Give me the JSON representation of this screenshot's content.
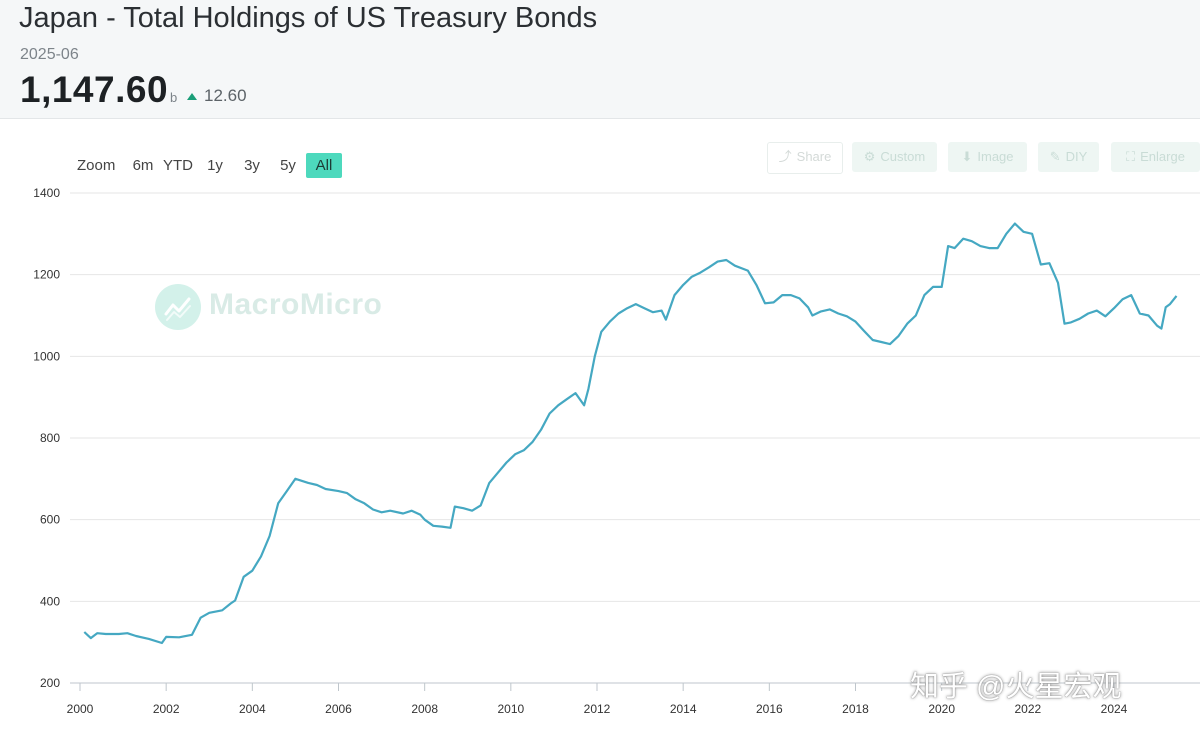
{
  "header": {
    "title": "Japan - Total Holdings of US Treasury Bonds",
    "date": "2025-06",
    "value": "1,147.60",
    "unit": "b",
    "change": "12.60"
  },
  "zoom": {
    "label": "Zoom",
    "buttons": [
      "6m",
      "YTD",
      "1y",
      "3y",
      "5y",
      "All"
    ],
    "active": "All"
  },
  "toolbar": {
    "share": "Share",
    "custom": "Custom",
    "image": "Image",
    "diy": "DIY",
    "enlarge": "Enlarge"
  },
  "watermark": "MacroMicro",
  "credit": "知乎 @火星宏观",
  "colors": {
    "line": "#45a8c2",
    "accent": "#4dd9bd",
    "up": "#1a9e78"
  },
  "chart_data": {
    "type": "line",
    "title": "Japan - Total Holdings of US Treasury Bonds",
    "unit": "b",
    "xlim": [
      2000,
      2025.5
    ],
    "ylim": [
      200,
      1400
    ],
    "yticks": [
      200,
      400,
      600,
      800,
      1000,
      1200,
      1400
    ],
    "xticks": [
      2000,
      2002,
      2004,
      2006,
      2008,
      2010,
      2012,
      2014,
      2016,
      2018,
      2020,
      2022,
      2024
    ],
    "grid": true,
    "series": [
      {
        "name": "Japan - Total Holdings of US Treasury Bonds",
        "points": [
          [
            2000.1,
            325
          ],
          [
            2000.25,
            310
          ],
          [
            2000.4,
            322
          ],
          [
            2000.6,
            320
          ],
          [
            2000.9,
            320
          ],
          [
            2001.1,
            322
          ],
          [
            2001.3,
            315
          ],
          [
            2001.6,
            308
          ],
          [
            2001.9,
            298
          ],
          [
            2002.0,
            313
          ],
          [
            2002.3,
            312
          ],
          [
            2002.6,
            318
          ],
          [
            2002.8,
            360
          ],
          [
            2003.0,
            372
          ],
          [
            2003.3,
            378
          ],
          [
            2003.5,
            395
          ],
          [
            2003.6,
            402
          ],
          [
            2003.8,
            460
          ],
          [
            2004.0,
            475
          ],
          [
            2004.2,
            510
          ],
          [
            2004.4,
            560
          ],
          [
            2004.6,
            640
          ],
          [
            2004.8,
            670
          ],
          [
            2005.0,
            700
          ],
          [
            2005.3,
            690
          ],
          [
            2005.5,
            685
          ],
          [
            2005.7,
            675
          ],
          [
            2006.0,
            670
          ],
          [
            2006.2,
            665
          ],
          [
            2006.4,
            650
          ],
          [
            2006.6,
            640
          ],
          [
            2006.8,
            625
          ],
          [
            2007.0,
            618
          ],
          [
            2007.2,
            622
          ],
          [
            2007.5,
            615
          ],
          [
            2007.7,
            622
          ],
          [
            2007.9,
            612
          ],
          [
            2008.0,
            600
          ],
          [
            2008.2,
            585
          ],
          [
            2008.4,
            583
          ],
          [
            2008.6,
            580
          ],
          [
            2008.7,
            632
          ],
          [
            2008.9,
            628
          ],
          [
            2009.1,
            622
          ],
          [
            2009.3,
            635
          ],
          [
            2009.5,
            690
          ],
          [
            2009.7,
            715
          ],
          [
            2009.9,
            740
          ],
          [
            2010.1,
            760
          ],
          [
            2010.3,
            770
          ],
          [
            2010.5,
            790
          ],
          [
            2010.7,
            820
          ],
          [
            2010.9,
            860
          ],
          [
            2011.1,
            880
          ],
          [
            2011.3,
            895
          ],
          [
            2011.5,
            910
          ],
          [
            2011.7,
            880
          ],
          [
            2011.8,
            920
          ],
          [
            2011.95,
            1000
          ],
          [
            2012.1,
            1060
          ],
          [
            2012.3,
            1085
          ],
          [
            2012.5,
            1105
          ],
          [
            2012.7,
            1118
          ],
          [
            2012.9,
            1128
          ],
          [
            2013.1,
            1118
          ],
          [
            2013.3,
            1108
          ],
          [
            2013.5,
            1112
          ],
          [
            2013.6,
            1090
          ],
          [
            2013.8,
            1150
          ],
          [
            2014.0,
            1175
          ],
          [
            2014.2,
            1195
          ],
          [
            2014.4,
            1205
          ],
          [
            2014.6,
            1218
          ],
          [
            2014.8,
            1232
          ],
          [
            2015.0,
            1236
          ],
          [
            2015.2,
            1222
          ],
          [
            2015.5,
            1210
          ],
          [
            2015.7,
            1175
          ],
          [
            2015.9,
            1130
          ],
          [
            2016.1,
            1132
          ],
          [
            2016.3,
            1150
          ],
          [
            2016.5,
            1150
          ],
          [
            2016.7,
            1142
          ],
          [
            2016.9,
            1120
          ],
          [
            2017.0,
            1100
          ],
          [
            2017.2,
            1110
          ],
          [
            2017.4,
            1115
          ],
          [
            2017.6,
            1105
          ],
          [
            2017.8,
            1098
          ],
          [
            2018.0,
            1085
          ],
          [
            2018.2,
            1062
          ],
          [
            2018.4,
            1040
          ],
          [
            2018.6,
            1035
          ],
          [
            2018.8,
            1030
          ],
          [
            2019.0,
            1050
          ],
          [
            2019.2,
            1080
          ],
          [
            2019.4,
            1100
          ],
          [
            2019.6,
            1150
          ],
          [
            2019.8,
            1170
          ],
          [
            2020.0,
            1170
          ],
          [
            2020.15,
            1270
          ],
          [
            2020.3,
            1265
          ],
          [
            2020.5,
            1288
          ],
          [
            2020.7,
            1282
          ],
          [
            2020.9,
            1270
          ],
          [
            2021.1,
            1265
          ],
          [
            2021.3,
            1265
          ],
          [
            2021.5,
            1300
          ],
          [
            2021.7,
            1325
          ],
          [
            2021.9,
            1305
          ],
          [
            2022.1,
            1300
          ],
          [
            2022.3,
            1225
          ],
          [
            2022.5,
            1228
          ],
          [
            2022.7,
            1180
          ],
          [
            2022.85,
            1080
          ],
          [
            2023.0,
            1083
          ],
          [
            2023.2,
            1092
          ],
          [
            2023.4,
            1105
          ],
          [
            2023.6,
            1112
          ],
          [
            2023.8,
            1098
          ],
          [
            2024.0,
            1118
          ],
          [
            2024.2,
            1140
          ],
          [
            2024.4,
            1150
          ],
          [
            2024.6,
            1105
          ],
          [
            2024.8,
            1100
          ],
          [
            2025.0,
            1075
          ],
          [
            2025.1,
            1068
          ],
          [
            2025.2,
            1120
          ],
          [
            2025.3,
            1128
          ],
          [
            2025.45,
            1148
          ]
        ]
      }
    ]
  }
}
